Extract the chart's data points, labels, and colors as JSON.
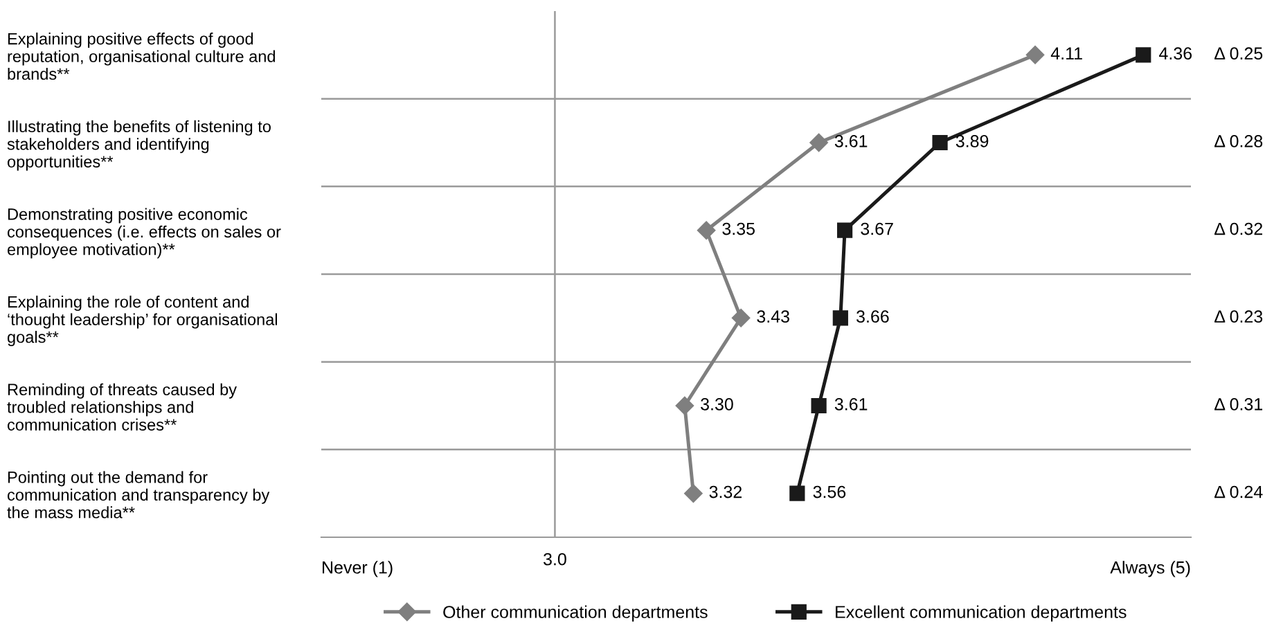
{
  "chart_data": {
    "type": "line",
    "orientation": "horizontal",
    "categories": [
      "Explaining positive effects of good\nreputation, organisational culture and\nbrands**",
      "Illustrating the benefits of listening to\nstakeholders and identifying\nopportunities**",
      "Demonstrating positive economic\nconsequences (i.e. effects on sales or\nemployee motivation)**",
      "Explaining the role of content and\n‘thought leadership’ for organisational\ngoals**",
      "Reminding of threats caused by\ntroubled relationships and\ncommunication crises**",
      "Pointing out the demand for\ncommunication and transparency by\nthe mass media**"
    ],
    "series": [
      {
        "name": "Other communication departments",
        "color": "#7f7f7f",
        "marker": "diamond",
        "values": [
          4.11,
          3.61,
          3.35,
          3.43,
          3.3,
          3.32
        ],
        "value_labels": [
          "4.11",
          "3.61",
          "3.35",
          "3.43",
          "3.30",
          "3.32"
        ]
      },
      {
        "name": "Excellent communication departments",
        "color": "#1a1a1a",
        "marker": "square",
        "values": [
          4.36,
          3.89,
          3.67,
          3.66,
          3.61,
          3.56
        ],
        "value_labels": [
          "4.36",
          "3.89",
          "3.67",
          "3.66",
          "3.61",
          "3.56"
        ]
      }
    ],
    "xlim": [
      2.46,
      4.47
    ],
    "ref_lines": [
      {
        "axis": "x",
        "value": 3,
        "label": "3.0",
        "color": "#9a9a9a"
      }
    ],
    "grid": "y",
    "legend": "bottom",
    "line_style": "solid",
    "annotations": [
      "Never (1)",
      "Always (5)",
      "Δ 0.25",
      "Δ 0.28",
      "Δ 0.32",
      "Δ 0.23",
      "Δ 0.31",
      "Δ 0.24"
    ]
  }
}
